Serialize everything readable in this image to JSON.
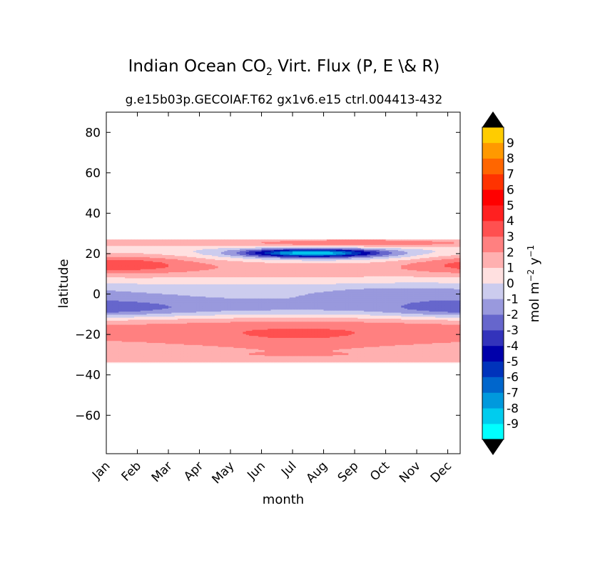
{
  "chart_data": {
    "type": "heatmap",
    "title_prefix": "Indian Ocean CO",
    "title_sub": "2",
    "title_suffix": " Virt. Flux (P, E \\& R)",
    "subtitle": "g.e15b03p.GECOIAF.T62 gx1v6.e15 ctrl.004413-432",
    "xlabel": "month",
    "ylabel": "latitude",
    "xticks": [
      "Jan",
      "Feb",
      "Mar",
      "Apr",
      "May",
      "Jun",
      "Jul",
      "Aug",
      "Sep",
      "Oct",
      "Nov",
      "Dec"
    ],
    "yticks": [
      80,
      60,
      40,
      20,
      0,
      -20,
      -40,
      -60
    ],
    "ylim": [
      -79,
      90
    ],
    "xlim": [
      0,
      11.4
    ],
    "data_lat_range": [
      -34,
      27
    ],
    "colorbar": {
      "label_main": "mol m",
      "label_exp1": "−2",
      "label_mid": "  y",
      "label_exp2": "−1",
      "levels": [
        -10,
        -9,
        -8,
        -7,
        -6,
        -5,
        -4,
        -3,
        -2,
        -1,
        0,
        1,
        2,
        3,
        4,
        5,
        6,
        7,
        8,
        9,
        10
      ],
      "tick_labels": [
        "9",
        "8",
        "7",
        "6",
        "5",
        "4",
        "3",
        "2",
        "1",
        "0",
        "-1",
        "-2",
        "-3",
        "-4",
        "-5",
        "-6",
        "-7",
        "-8",
        "-9"
      ],
      "colors": [
        "#00ffff",
        "#00ccee",
        "#0099dd",
        "#0066cc",
        "#0033bb",
        "#0000aa",
        "#3333bb",
        "#6666cc",
        "#9999dd",
        "#ccccee",
        "#ffe0e0",
        "#ffb0b0",
        "#ff8080",
        "#ff5050",
        "#ff2020",
        "#ff0000",
        "#ff3300",
        "#ff6600",
        "#ff9900",
        "#ffcc00",
        "#ffff00"
      ],
      "extend": "both"
    },
    "bands": [
      {
        "lat_min": 23,
        "lat_max": 27,
        "value": 2.5,
        "note": "strong red near Sep-Oct"
      },
      {
        "lat_min": 19,
        "lat_max": 23,
        "value": -5,
        "months": [
          4.5,
          10.5
        ]
      },
      {
        "lat_min": 8,
        "lat_max": 20,
        "value": 2
      },
      {
        "lat_min": 0,
        "lat_max": 8,
        "value": -1
      },
      {
        "lat_min": -12,
        "lat_max": 0,
        "value": -2
      },
      {
        "lat_min": -18,
        "lat_max": -12,
        "value": 1
      },
      {
        "lat_min": -30,
        "lat_max": -18,
        "value": 2.5
      },
      {
        "lat_min": -34,
        "lat_max": -30,
        "value": 1.5
      }
    ]
  }
}
